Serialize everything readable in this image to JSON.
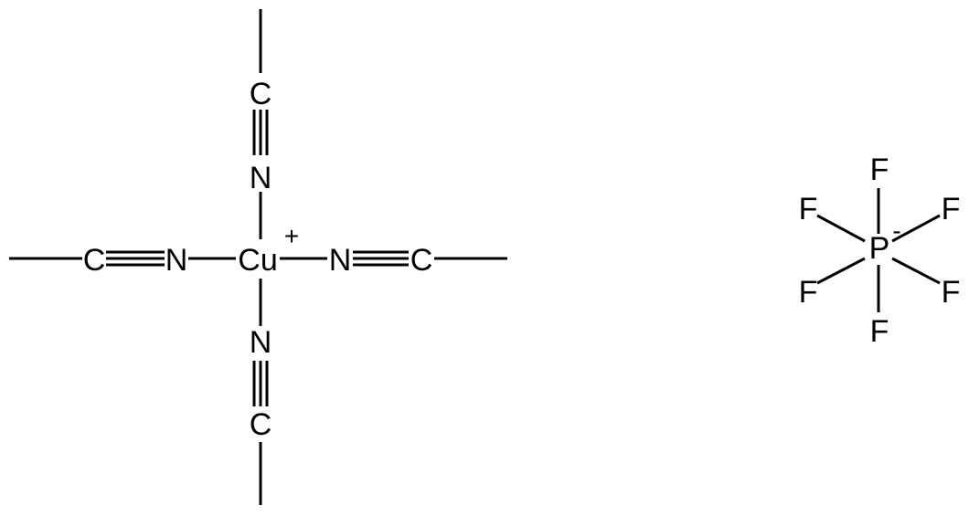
{
  "cation": {
    "center": "Cu",
    "charge": "+",
    "ligands": {
      "top": {
        "near": "N",
        "far": "C"
      },
      "bottom": {
        "near": "N",
        "far": "C"
      },
      "left": {
        "near": "N",
        "far": "C"
      },
      "right": {
        "near": "N",
        "far": "C"
      }
    }
  },
  "anion": {
    "center": "P",
    "charge": "-",
    "substituents": [
      "F",
      "F",
      "F",
      "F",
      "F",
      "F"
    ]
  }
}
